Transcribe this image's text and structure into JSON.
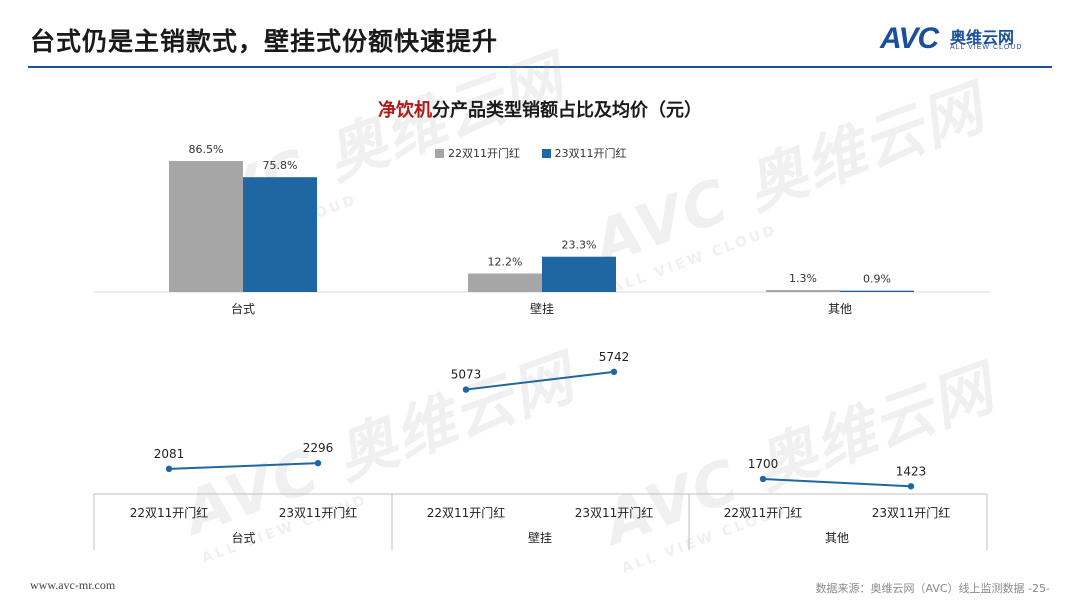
{
  "header": {
    "title": "台式仍是主销款式，壁挂式份额快速提升",
    "logo_text": "AVC",
    "logo_cn": "奥维云网",
    "logo_en": "ALL VIEW CLOUD"
  },
  "watermark": {
    "main": "AVC 奥维云网",
    "sub": "ALL VIEW CLOUD"
  },
  "colors": {
    "series_22": "#a6a6a6",
    "series_23": "#1f67a3",
    "accent": "#1b4f9c",
    "title_highlight": "#b11a1a"
  },
  "chart_data": [
    {
      "type": "bar",
      "title_highlight": "净饮机",
      "title": "分产品类型销额占比及均价（元）",
      "categories": [
        "台式",
        "壁挂",
        "其他"
      ],
      "series": [
        {
          "name": "22双11开门红",
          "values": [
            86.5,
            12.2,
            1.3
          ],
          "labels": [
            "86.5%",
            "12.2%",
            "1.3%"
          ]
        },
        {
          "name": "23双11开门红",
          "values": [
            75.8,
            23.3,
            0.9
          ],
          "labels": [
            "75.8%",
            "23.3%",
            "0.9%"
          ]
        }
      ],
      "legend_position": "top-center",
      "ylim": [
        0,
        100
      ]
    },
    {
      "type": "line",
      "groups": [
        {
          "label": "台式",
          "x": [
            "22双11开门红",
            "23双11开门红"
          ],
          "values": [
            2081,
            2296
          ]
        },
        {
          "label": "壁挂",
          "x": [
            "22双11开门红",
            "23双11开门红"
          ],
          "values": [
            5073,
            5742
          ]
        },
        {
          "label": "其他",
          "x": [
            "22双11开门红",
            "23双11开门红"
          ],
          "values": [
            1700,
            1423
          ]
        }
      ],
      "ylim": [
        0,
        6000
      ]
    }
  ],
  "footer": {
    "website": "www.avc-mr.com",
    "source": "数据来源：奥维云网（AVC）线上监测数据 -25-"
  }
}
